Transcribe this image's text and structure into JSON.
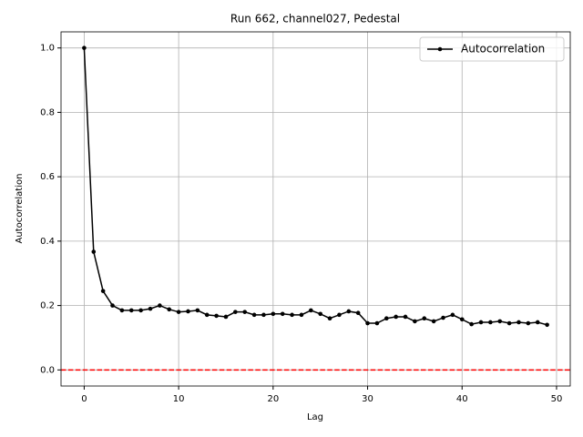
{
  "chart_data": {
    "type": "line",
    "title": "Run 662, channel027, Pedestal",
    "x_label": "Lag",
    "y_label": "Autocorrelation",
    "x": [
      0,
      1,
      2,
      3,
      4,
      5,
      6,
      7,
      8,
      9,
      10,
      11,
      12,
      13,
      14,
      15,
      16,
      17,
      18,
      19,
      20,
      21,
      22,
      23,
      24,
      25,
      26,
      27,
      28,
      29,
      30,
      31,
      32,
      33,
      34,
      35,
      36,
      37,
      38,
      39,
      40,
      41,
      42,
      43,
      44,
      45,
      46,
      47,
      48,
      49
    ],
    "series": [
      {
        "name": "Autocorrelation",
        "color": "#000000",
        "values": [
          1.0,
          0.367,
          0.245,
          0.2,
          0.185,
          0.185,
          0.185,
          0.19,
          0.2,
          0.188,
          0.18,
          0.182,
          0.185,
          0.171,
          0.168,
          0.165,
          0.18,
          0.18,
          0.171,
          0.171,
          0.174,
          0.174,
          0.171,
          0.171,
          0.185,
          0.174,
          0.16,
          0.171,
          0.182,
          0.177,
          0.145,
          0.145,
          0.16,
          0.165,
          0.165,
          0.151,
          0.16,
          0.151,
          0.162,
          0.171,
          0.157,
          0.142,
          0.148,
          0.148,
          0.151,
          0.145,
          0.148,
          0.145,
          0.148,
          0.14
        ]
      }
    ],
    "hlines": [
      {
        "value": 0,
        "color": "#ff0000",
        "style": "dashed"
      }
    ],
    "xlim": [
      -2.45,
      51.45
    ],
    "ylim": [
      -0.05,
      1.05
    ],
    "xticks": [
      0,
      10,
      20,
      30,
      40,
      50
    ],
    "yticks": [
      {
        "value": 0,
        "label": "0.0"
      },
      {
        "value": 0.2,
        "label": "0.2"
      },
      {
        "value": 0.4,
        "label": "0.4"
      },
      {
        "value": 0.6,
        "label": "0.6"
      },
      {
        "value": 0.8,
        "label": "0.8"
      },
      {
        "value": 1.0,
        "label": "1.0"
      }
    ],
    "grid": true,
    "legend": "upper right"
  }
}
